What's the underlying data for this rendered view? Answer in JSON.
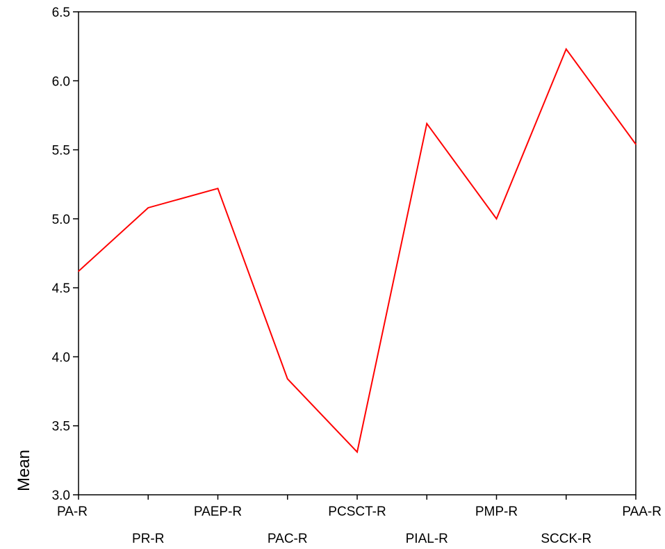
{
  "chart_data": {
    "type": "line",
    "title": "",
    "xlabel": "",
    "ylabel": "Mean",
    "categories": [
      "PA-R",
      "PR-R",
      "PAEP-R",
      "PAC-R",
      "PCSCT-R",
      "PIAL-R",
      "PMP-R",
      "SCCK-R",
      "PAA-R"
    ],
    "series": [
      {
        "values": [
          4.62,
          5.08,
          5.22,
          3.84,
          3.31,
          5.69,
          5.0,
          6.23,
          5.54
        ]
      }
    ],
    "ylim": [
      3.0,
      6.5
    ],
    "yticks": [
      "3.0",
      "3.5",
      "4.0",
      "4.5",
      "5.0",
      "5.5",
      "6.0",
      "6.5"
    ],
    "grid": false,
    "line_color": "#ff0000"
  }
}
